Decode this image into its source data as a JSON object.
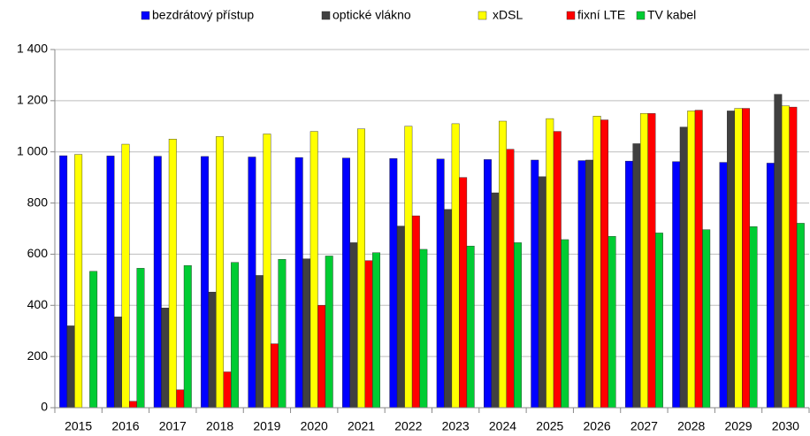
{
  "chart_data": {
    "type": "bar",
    "categories": [
      "2015",
      "2016",
      "2017",
      "2018",
      "2019",
      "2020",
      "2021",
      "2022",
      "2023",
      "2024",
      "2025",
      "2026",
      "2027",
      "2028",
      "2029",
      "2030"
    ],
    "series": [
      {
        "name": "bezdrátový přístup",
        "color": "#0000ff",
        "values": [
          985,
          984,
          983,
          982,
          980,
          978,
          976,
          974,
          972,
          970,
          968,
          966,
          964,
          962,
          959,
          956
        ]
      },
      {
        "name": "optické vlákno",
        "color": "#404040",
        "values": [
          320,
          355,
          390,
          452,
          517,
          582,
          645,
          710,
          775,
          840,
          903,
          968,
          1032,
          1097,
          1160,
          1225
        ]
      },
      {
        "name": "xDSL",
        "color": "#ffff00",
        "values": [
          990,
          1030,
          1050,
          1060,
          1070,
          1080,
          1090,
          1100,
          1110,
          1120,
          1130,
          1140,
          1150,
          1160,
          1170,
          1180
        ]
      },
      {
        "name": "fixní LTE",
        "color": "#ff0000",
        "values": [
          0,
          25,
          70,
          140,
          250,
          400,
          575,
          750,
          900,
          1010,
          1080,
          1125,
          1150,
          1163,
          1170,
          1175
        ]
      },
      {
        "name": "TV kabel",
        "color": "#00cc33",
        "values": [
          533,
          545,
          556,
          568,
          580,
          593,
          606,
          619,
          632,
          645,
          657,
          670,
          683,
          696,
          708,
          721
        ]
      }
    ],
    "ylim": [
      0,
      1400
    ],
    "yticks": [
      0,
      200,
      400,
      600,
      800,
      {
        "value": 1000,
        "label": "1 000"
      },
      {
        "value": 1200,
        "label": "1 200"
      },
      {
        "value": 1400,
        "label": "1 400"
      }
    ],
    "grid": true,
    "legend": "top"
  }
}
